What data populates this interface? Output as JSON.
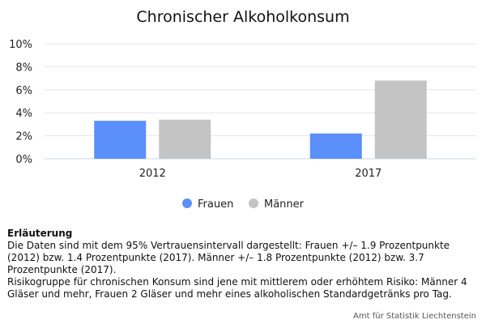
{
  "chart_data": {
    "type": "bar",
    "title": "Chronischer Alkoholkonsum",
    "categories": [
      "2012",
      "2017"
    ],
    "series": [
      {
        "name": "Frauen",
        "values": [
          3.3,
          2.2
        ],
        "color": "#5b8ff9"
      },
      {
        "name": "Männer",
        "values": [
          3.4,
          6.8
        ],
        "color": "#c4c4c4"
      }
    ],
    "yticks": [
      "0%",
      "2%",
      "4%",
      "6%",
      "8%",
      "10%"
    ],
    "ylim": [
      0,
      10
    ],
    "grid": true,
    "legend": "bottom-center"
  },
  "notes": {
    "heading": "Erläuterung",
    "line1": "Die Daten sind mit dem 95% Vertrauensintervall dargestellt: Frauen +/– 1.9 Prozentpunkte (2012) bzw. 1.4 Prozentpunkte (2017). Männer +/– 1.8 Prozentpunkte (2012) bzw. 3.7 Prozentpunkte (2017).",
    "line2": "Risikogruppe für chronischen Konsum sind jene mit mittlerem oder erhöhtem Risiko: Männer 4 Gläser und mehr, Frauen 2 Gläser und mehr eines alkoholischen Standardgetränks pro Tag."
  },
  "credit": "Amt für Statistik Liechtenstein"
}
